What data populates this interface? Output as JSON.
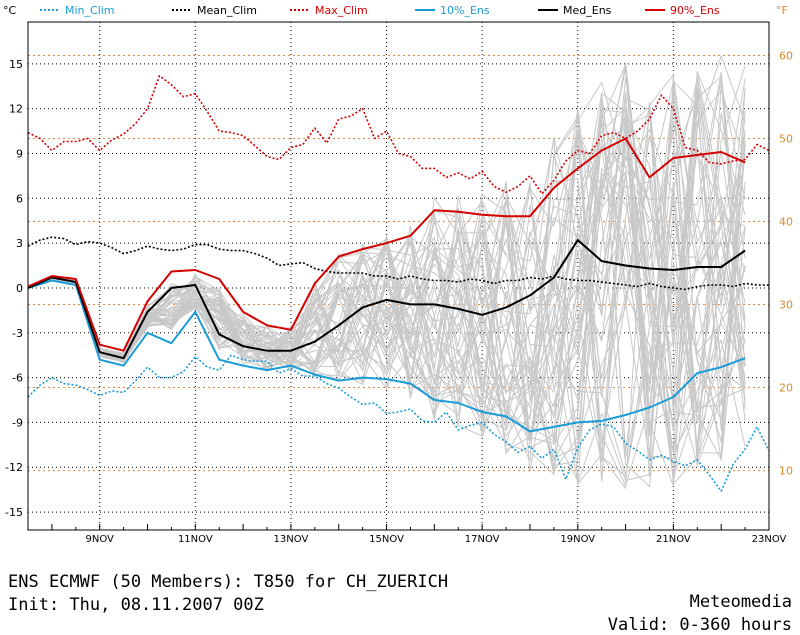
{
  "chart_data": {
    "type": "line",
    "unit_left": "°C",
    "unit_right": "°F",
    "x": {
      "tick_labels": [
        "9NOV",
        "11NOV",
        "13NOV",
        "15NOV",
        "17NOV",
        "19NOV",
        "21NOV",
        "23NOV"
      ],
      "tick_hours": [
        24,
        72,
        120,
        168,
        216,
        264,
        312,
        360
      ],
      "range_hours": [
        -12,
        360
      ]
    },
    "y_left": {
      "range": [
        -16.2,
        17.8
      ],
      "ticks": [
        -15,
        -12,
        -9,
        -6,
        -3,
        0,
        3,
        6,
        9,
        12,
        15
      ]
    },
    "y_right": {
      "ticks": [
        10,
        20,
        30,
        40,
        50,
        60
      ]
    },
    "grid": true,
    "legend": [
      {
        "name": "Min_Clim",
        "color": "#1a9cd8",
        "style": "dotted"
      },
      {
        "name": "Mean_Clim",
        "color": "#000000",
        "style": "dotted"
      },
      {
        "name": "Max_Clim",
        "color": "#d40000",
        "style": "dotted"
      },
      {
        "name": "10%_Ens",
        "color": "#1a9cd8",
        "style": "solid"
      },
      {
        "name": "Med_Ens",
        "color": "#000000",
        "style": "solid"
      },
      {
        "name": "90%_Ens",
        "color": "#d40000",
        "style": "solid"
      }
    ],
    "series": [
      {
        "name": "Min_Clim",
        "x_hours": [
          -12,
          -6,
          0,
          6,
          12,
          18,
          24,
          30,
          36,
          42,
          48,
          54,
          60,
          66,
          72,
          78,
          84,
          90,
          96,
          102,
          108,
          114,
          120,
          126,
          132,
          138,
          144,
          150,
          156,
          162,
          168,
          174,
          180,
          186,
          192,
          198,
          204,
          210,
          216,
          222,
          228,
          234,
          240,
          246,
          252,
          258,
          264,
          270,
          276,
          282,
          288,
          294,
          300,
          306,
          312,
          318,
          324,
          330,
          336,
          342,
          348,
          354,
          360
        ],
        "values": [
          -7.3,
          -6.5,
          -6.0,
          -6.4,
          -6.5,
          -6.8,
          -7.2,
          -6.9,
          -7.0,
          -6.2,
          -5.3,
          -6.0,
          -6.0,
          -5.6,
          -4.6,
          -5.3,
          -5.5,
          -4.5,
          -4.8,
          -4.9,
          -4.9,
          -5.7,
          -5.4,
          -5.9,
          -5.9,
          -6.4,
          -6.7,
          -7.3,
          -7.8,
          -7.7,
          -8.4,
          -8.3,
          -8.1,
          -8.9,
          -9.0,
          -8.3,
          -9.5,
          -9.2,
          -9.0,
          -9.8,
          -10.3,
          -11.0,
          -10.6,
          -11.4,
          -10.8,
          -12.8,
          -10.7,
          -9.5,
          -9.1,
          -9.3,
          -10.4,
          -10.9,
          -11.5,
          -11.2,
          -11.6,
          -11.9,
          -11.5,
          -12.5,
          -13.6,
          -11.8,
          -10.8,
          -9.3,
          -10.9
        ]
      },
      {
        "name": "Mean_Clim",
        "x_hours": [
          -12,
          -6,
          0,
          6,
          12,
          18,
          24,
          30,
          36,
          42,
          48,
          54,
          60,
          66,
          72,
          78,
          84,
          90,
          96,
          102,
          108,
          114,
          120,
          126,
          132,
          138,
          144,
          150,
          156,
          162,
          168,
          174,
          180,
          186,
          192,
          198,
          204,
          210,
          216,
          222,
          228,
          234,
          240,
          246,
          252,
          258,
          264,
          270,
          276,
          282,
          288,
          294,
          300,
          306,
          312,
          318,
          324,
          330,
          336,
          342,
          348,
          354,
          360
        ],
        "values": [
          2.8,
          3.2,
          3.4,
          3.3,
          2.9,
          3.1,
          3.0,
          2.7,
          2.3,
          2.5,
          2.8,
          2.6,
          2.5,
          2.6,
          2.9,
          2.9,
          2.6,
          2.5,
          2.5,
          2.3,
          2.0,
          1.5,
          1.6,
          1.7,
          1.3,
          1.1,
          1.0,
          1.0,
          1.0,
          0.8,
          0.8,
          0.6,
          0.8,
          0.6,
          0.5,
          0.5,
          0.4,
          0.6,
          0.5,
          0.3,
          0.5,
          0.5,
          0.7,
          0.6,
          0.8,
          0.6,
          0.5,
          0.5,
          0.4,
          0.3,
          0.2,
          0.1,
          0.3,
          0.1,
          0.0,
          -0.1,
          0.1,
          0.2,
          0.2,
          0.1,
          0.3,
          0.2,
          0.2
        ]
      },
      {
        "name": "Max_Clim",
        "x_hours": [
          -12,
          -6,
          0,
          6,
          12,
          18,
          24,
          30,
          36,
          42,
          48,
          54,
          60,
          66,
          72,
          78,
          84,
          90,
          96,
          102,
          108,
          114,
          120,
          126,
          132,
          138,
          144,
          150,
          156,
          162,
          168,
          174,
          180,
          186,
          192,
          198,
          204,
          210,
          216,
          222,
          228,
          234,
          240,
          246,
          252,
          258,
          264,
          270,
          276,
          282,
          288,
          294,
          300,
          306,
          312,
          318,
          324,
          330,
          336,
          342,
          348,
          354,
          360
        ],
        "values": [
          10.4,
          10.0,
          9.2,
          9.8,
          9.8,
          10.0,
          9.2,
          9.9,
          10.3,
          11.0,
          12.0,
          14.2,
          13.6,
          12.8,
          13.0,
          11.8,
          10.5,
          10.4,
          10.2,
          9.5,
          8.8,
          8.6,
          9.4,
          9.6,
          10.7,
          9.7,
          11.3,
          11.5,
          12.0,
          10.0,
          10.5,
          9.0,
          8.8,
          8.0,
          8.0,
          7.4,
          7.7,
          7.3,
          7.8,
          6.8,
          6.4,
          6.8,
          7.5,
          6.3,
          7.2,
          8.5,
          9.2,
          9.0,
          10.2,
          10.4,
          10.0,
          10.5,
          11.3,
          12.9,
          12.0,
          9.4,
          9.2,
          8.4,
          8.3,
          8.5,
          8.6,
          9.6,
          9.2
        ]
      },
      {
        "name": "10%_Ens",
        "x_hours": [
          -12,
          0,
          12,
          24,
          36,
          48,
          60,
          72,
          84,
          96,
          108,
          120,
          132,
          144,
          156,
          168,
          180,
          192,
          204,
          216,
          228,
          240,
          252,
          264,
          276,
          288,
          300,
          312,
          324,
          336,
          348
        ],
        "values": [
          0.0,
          0.5,
          0.2,
          -4.8,
          -5.2,
          -3.0,
          -3.7,
          -1.6,
          -4.8,
          -5.2,
          -5.5,
          -5.2,
          -5.8,
          -6.2,
          -6.0,
          -6.1,
          -6.4,
          -7.5,
          -7.7,
          -8.3,
          -8.6,
          -9.6,
          -9.3,
          -9.0,
          -8.9,
          -8.5,
          -8.0,
          -7.3,
          -5.7,
          -5.3,
          -4.7
        ]
      },
      {
        "name": "Med_Ens",
        "x_hours": [
          -12,
          0,
          12,
          24,
          36,
          48,
          60,
          72,
          84,
          96,
          108,
          120,
          132,
          144,
          156,
          168,
          180,
          192,
          204,
          216,
          228,
          240,
          252,
          264,
          276,
          288,
          300,
          312,
          324,
          336,
          348
        ],
        "values": [
          0.0,
          0.7,
          0.4,
          -4.3,
          -4.7,
          -1.6,
          0.0,
          0.2,
          -3.1,
          -3.9,
          -4.2,
          -4.2,
          -3.6,
          -2.5,
          -1.3,
          -0.8,
          -1.1,
          -1.1,
          -1.4,
          -1.8,
          -1.3,
          -0.5,
          0.7,
          3.2,
          1.8,
          1.5,
          1.3,
          1.2,
          1.4,
          1.4,
          2.5
        ]
      },
      {
        "name": "90%_Ens",
        "x_hours": [
          -12,
          0,
          12,
          24,
          36,
          48,
          60,
          72,
          84,
          96,
          108,
          120,
          132,
          144,
          156,
          168,
          180,
          192,
          204,
          216,
          228,
          240,
          252,
          264,
          276,
          288,
          300,
          312,
          324,
          336,
          348
        ],
        "values": [
          0.1,
          0.8,
          0.6,
          -3.8,
          -4.2,
          -0.9,
          1.1,
          1.2,
          0.6,
          -1.6,
          -2.5,
          -2.8,
          0.3,
          2.1,
          2.6,
          3.0,
          3.5,
          5.2,
          5.1,
          4.9,
          4.8,
          4.8,
          6.7,
          8.0,
          9.2,
          10.0,
          7.4,
          8.7,
          8.9,
          9.1,
          8.4
        ]
      }
    ]
  },
  "footer": {
    "title": "ENS ECMWF (50 Members): T850 for CH_ZUERICH",
    "brand": "Meteomedia",
    "init": "Init: Thu, 08.11.2007 00Z",
    "valid": "Valid: 0-360 hours"
  }
}
